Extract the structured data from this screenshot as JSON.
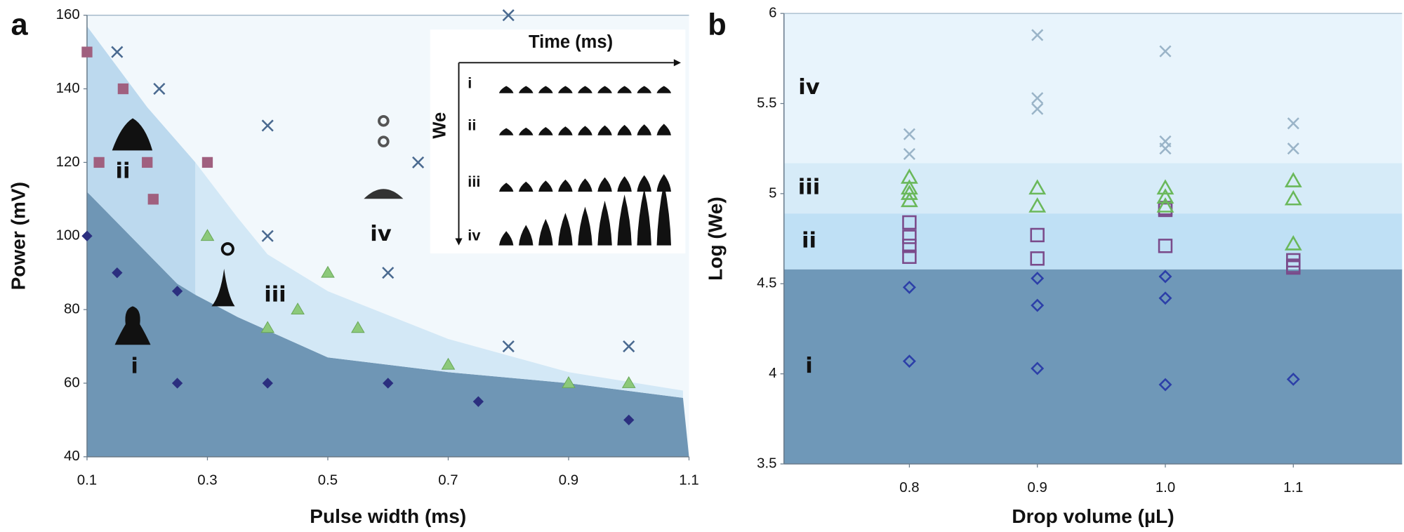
{
  "chart_data": [
    {
      "type": "scatter",
      "panel": "a",
      "xlabel": "Pulse width (ms)",
      "ylabel": "Power (mV)",
      "xlim": [
        0.1,
        1.1
      ],
      "xticks": [
        0.1,
        0.3,
        0.5,
        0.7,
        0.9,
        1.1
      ],
      "ylim": [
        40,
        160
      ],
      "yticks": [
        40,
        60,
        80,
        100,
        120,
        140,
        160
      ],
      "background": "#f2f8fc",
      "regions": [
        {
          "name": "i",
          "color": "#6f96b5",
          "x": [
            0.1,
            0.1,
            0.25,
            0.35,
            0.5,
            0.7,
            0.9,
            1.09,
            1.1
          ],
          "y": [
            40,
            112,
            87,
            78,
            67,
            63,
            60,
            56,
            40
          ]
        },
        {
          "name": "ii",
          "color": "#bcd9ee",
          "x": [
            0.1,
            0.1,
            0.2,
            0.28,
            0.28,
            0.25,
            0.1
          ],
          "y": [
            112,
            157,
            135,
            120,
            84,
            87,
            112
          ]
        },
        {
          "name": "iii",
          "color": "#d3e8f6",
          "x": [
            0.28,
            0.35,
            0.4,
            0.5,
            0.7,
            0.9,
            1.09,
            1.09,
            0.9,
            0.7,
            0.5,
            0.35,
            0.28
          ],
          "y": [
            120,
            105,
            95,
            85,
            72,
            63,
            58,
            56,
            60,
            63,
            67,
            78,
            84
          ]
        },
        {
          "name": "iv"
        }
      ],
      "series": [
        {
          "marker": "diamond",
          "color": "#2b2f7f",
          "x": [
            0.1,
            0.15,
            0.25,
            0.25,
            0.4,
            0.6,
            0.75,
            1.0
          ],
          "values": [
            100,
            90,
            85,
            60,
            60,
            60,
            55,
            50
          ]
        },
        {
          "marker": "square",
          "color": "#a0607f",
          "x": [
            0.1,
            0.16,
            0.12,
            0.2,
            0.21,
            0.3
          ],
          "values": [
            150,
            140,
            120,
            120,
            110,
            120
          ]
        },
        {
          "marker": "triangle",
          "color": "#8cc97a",
          "x": [
            0.3,
            0.4,
            0.45,
            0.5,
            0.55,
            0.7,
            0.9,
            1.0
          ],
          "values": [
            100,
            75,
            80,
            90,
            75,
            65,
            60,
            60
          ]
        },
        {
          "marker": "cross",
          "color": "#4a6a90",
          "x": [
            0.15,
            0.22,
            0.4,
            0.4,
            0.65,
            0.6,
            0.8,
            0.8,
            1.0
          ],
          "values": [
            150,
            140,
            130,
            100,
            120,
            90,
            160,
            70,
            70
          ]
        }
      ],
      "inset": {
        "title": "Time (ms)",
        "axis": "We",
        "rows": [
          "i",
          "ii",
          "iii",
          "iv"
        ]
      }
    },
    {
      "type": "scatter",
      "panel": "b",
      "xlabel": "Drop volume (µL)",
      "ylabel": "Log (We)",
      "xlim": [
        0.702,
        1.185
      ],
      "xticks": [
        0.8,
        0.9,
        {
          "value": 1.0,
          "label": "1.0"
        },
        1.1
      ],
      "ylim": [
        3.5,
        6
      ],
      "yticks": [
        3.5,
        4,
        4.5,
        5,
        5.5,
        6
      ],
      "bands": [
        {
          "name": "i",
          "color": "#6f98b8",
          "range": [
            3.5,
            4.58
          ]
        },
        {
          "name": "ii",
          "color": "#bfe0f5",
          "range": [
            4.58,
            4.89
          ]
        },
        {
          "name": "iii",
          "color": "#d6ebf8",
          "range": [
            4.89,
            5.17
          ]
        },
        {
          "name": "iv",
          "color": "#e8f4fc",
          "range": [
            5.17,
            6
          ]
        }
      ],
      "series": [
        {
          "marker": "diamond-open",
          "color": "#2c3fa8",
          "x": [
            0.8,
            0.8,
            0.9,
            0.9,
            0.9,
            1.0,
            1.0,
            1.0,
            1.1
          ],
          "values": [
            4.48,
            4.07,
            4.53,
            4.38,
            4.03,
            4.54,
            4.42,
            3.94,
            3.97
          ]
        },
        {
          "marker": "square-open",
          "color": "#7a4a8a",
          "x": [
            0.8,
            0.8,
            0.8,
            0.8,
            0.9,
            0.9,
            1.0,
            1.0,
            1.0,
            1.1,
            1.1,
            1.1
          ],
          "values": [
            4.84,
            4.76,
            4.71,
            4.65,
            4.77,
            4.64,
            4.92,
            4.91,
            4.71,
            4.63,
            4.6,
            4.59
          ]
        },
        {
          "marker": "triangle-open",
          "color": "#6ab85a",
          "x": [
            0.8,
            0.8,
            0.8,
            0.8,
            0.9,
            0.9,
            1.0,
            1.0,
            1.0,
            1.1,
            1.1,
            1.1
          ],
          "values": [
            5.09,
            5.03,
            5.0,
            4.96,
            5.03,
            4.93,
            5.03,
            4.98,
            4.93,
            5.07,
            4.97,
            4.72
          ]
        },
        {
          "marker": "cross",
          "color": "#9ab4c8",
          "x": [
            0.8,
            0.8,
            0.9,
            0.9,
            0.9,
            1.0,
            1.0,
            1.0,
            1.1,
            1.1
          ],
          "values": [
            5.33,
            5.22,
            5.88,
            5.53,
            5.47,
            5.79,
            5.29,
            5.25,
            5.39,
            5.25
          ]
        }
      ]
    }
  ]
}
